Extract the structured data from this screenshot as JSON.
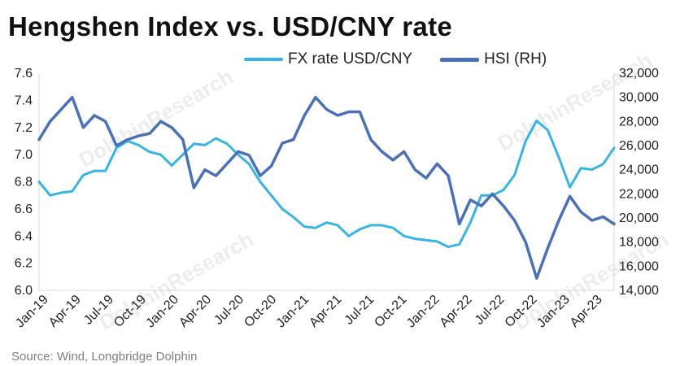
{
  "header": {
    "title": "Hengshen Index vs. USD/CNY rate"
  },
  "footer": {
    "source": "Source: Wind, Longbridge Dolphin"
  },
  "watermark": {
    "text": "DolphinResearch"
  },
  "colors": {
    "fx": "#35b6e6",
    "hsi": "#4a70b8",
    "axis": "#d9d9d9",
    "text": "#222222"
  },
  "chart_data": {
    "type": "line",
    "title": "Hengshen Index vs. USD/CNY rate",
    "x_ticks": [
      "Jan-19",
      "Apr-19",
      "Jul-19",
      "Oct-19",
      "Jan-20",
      "Apr-20",
      "Jul-20",
      "Oct-20",
      "Jan-21",
      "Apr-21",
      "Jul-21",
      "Oct-21",
      "Jan-22",
      "Apr-22",
      "Jul-22",
      "Oct-22",
      "Jan-23",
      "Apr-23"
    ],
    "x_range": [
      "2019-01",
      "2023-05"
    ],
    "y_left": {
      "range": [
        6.0,
        7.6
      ],
      "ticks": [
        "6.0",
        "6.2",
        "6.4",
        "6.6",
        "6.8",
        "7.0",
        "7.2",
        "7.4",
        "7.6"
      ]
    },
    "y_right": {
      "range": [
        14000,
        32000
      ],
      "ticks": [
        "14,000",
        "16,000",
        "18,000",
        "20,000",
        "22,000",
        "24,000",
        "26,000",
        "28,000",
        "30,000",
        "32,000"
      ],
      "label_suffix": "(RH)"
    },
    "grid": false,
    "legend_position": "top",
    "series": [
      {
        "name": "FX rate USD/CNY",
        "axis": "left",
        "x": [
          "2019-01",
          "2019-02",
          "2019-03",
          "2019-04",
          "2019-05",
          "2019-06",
          "2019-07",
          "2019-08",
          "2019-09",
          "2019-10",
          "2019-11",
          "2019-12",
          "2020-01",
          "2020-02",
          "2020-03",
          "2020-04",
          "2020-05",
          "2020-06",
          "2020-07",
          "2020-08",
          "2020-09",
          "2020-10",
          "2020-11",
          "2020-12",
          "2021-01",
          "2021-02",
          "2021-03",
          "2021-04",
          "2021-05",
          "2021-06",
          "2021-07",
          "2021-08",
          "2021-09",
          "2021-10",
          "2021-11",
          "2021-12",
          "2022-01",
          "2022-02",
          "2022-03",
          "2022-04",
          "2022-05",
          "2022-06",
          "2022-07",
          "2022-08",
          "2022-09",
          "2022-10",
          "2022-11",
          "2022-12",
          "2023-01",
          "2023-02",
          "2023-03",
          "2023-04",
          "2023-05"
        ],
        "values": [
          6.8,
          6.7,
          6.72,
          6.73,
          6.85,
          6.88,
          6.88,
          7.05,
          7.1,
          7.07,
          7.02,
          7.0,
          6.92,
          7.0,
          7.08,
          7.07,
          7.12,
          7.08,
          7.0,
          6.93,
          6.8,
          6.7,
          6.6,
          6.54,
          6.47,
          6.46,
          6.5,
          6.48,
          6.4,
          6.45,
          6.48,
          6.48,
          6.46,
          6.4,
          6.38,
          6.37,
          6.36,
          6.32,
          6.34,
          6.5,
          6.7,
          6.7,
          6.74,
          6.85,
          7.1,
          7.25,
          7.18,
          6.98,
          6.76,
          6.9,
          6.89,
          6.93,
          7.05
        ]
      },
      {
        "name": "HSI (RH)",
        "axis": "right",
        "x": [
          "2019-01",
          "2019-02",
          "2019-03",
          "2019-04",
          "2019-05",
          "2019-06",
          "2019-07",
          "2019-08",
          "2019-09",
          "2019-10",
          "2019-11",
          "2019-12",
          "2020-01",
          "2020-02",
          "2020-03",
          "2020-04",
          "2020-05",
          "2020-06",
          "2020-07",
          "2020-08",
          "2020-09",
          "2020-10",
          "2020-11",
          "2020-12",
          "2021-01",
          "2021-02",
          "2021-03",
          "2021-04",
          "2021-05",
          "2021-06",
          "2021-07",
          "2021-08",
          "2021-09",
          "2021-10",
          "2021-11",
          "2021-12",
          "2022-01",
          "2022-02",
          "2022-03",
          "2022-04",
          "2022-05",
          "2022-06",
          "2022-07",
          "2022-08",
          "2022-09",
          "2022-10",
          "2022-11",
          "2022-12",
          "2023-01",
          "2023-02",
          "2023-03",
          "2023-04",
          "2023-05"
        ],
        "values": [
          26500,
          28000,
          29000,
          30000,
          27500,
          28500,
          28000,
          26000,
          26500,
          26800,
          27000,
          28000,
          27500,
          26500,
          22500,
          24000,
          23500,
          24500,
          25500,
          25200,
          23500,
          24300,
          26200,
          26500,
          28500,
          30000,
          29000,
          28500,
          28800,
          28800,
          26500,
          25500,
          24800,
          25500,
          24000,
          23300,
          24500,
          23500,
          19500,
          21500,
          21000,
          22000,
          21000,
          19800,
          18000,
          15000,
          17500,
          19800,
          21800,
          20500,
          19800,
          20100,
          19500
        ]
      }
    ]
  }
}
